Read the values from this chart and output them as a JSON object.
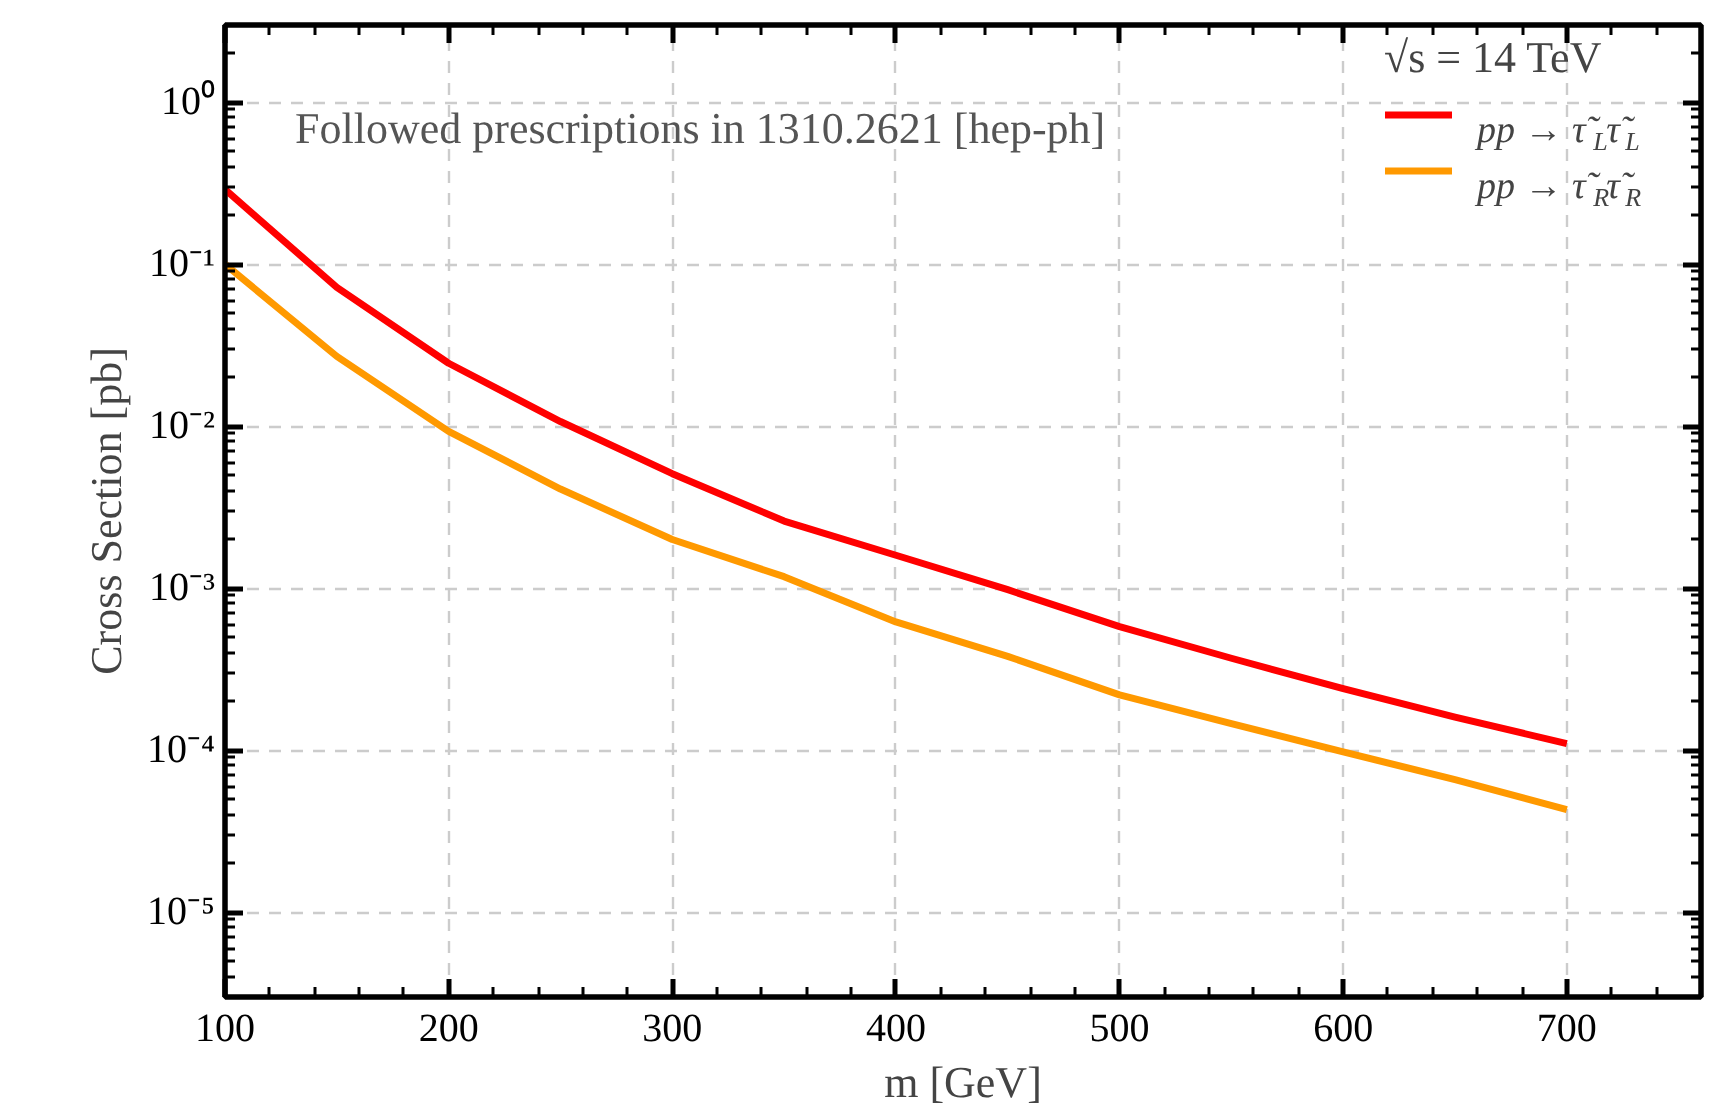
{
  "chart_data": {
    "type": "line",
    "xlabel": "m [GeV]",
    "ylabel": "Cross Section [pb]",
    "legend_title": "√s = 14 TeV",
    "annotations": [
      "Followed prescriptions in 1310.2621 [hep-ph]"
    ],
    "x": [
      100,
      150,
      200,
      250,
      300,
      350,
      400,
      450,
      500,
      550,
      600,
      650,
      700
    ],
    "series": [
      {
        "name": "pp → τ̃$_{L}$τ̃$_{L}$",
        "color": "#ff0000",
        "values": [
          0.29,
          0.072,
          0.0245,
          0.0107,
          0.0051,
          0.0026,
          0.0016,
          0.00098,
          0.00058,
          0.00037,
          0.00024,
          0.00016,
          0.00011
        ]
      },
      {
        "name": "pp → τ̃$_{R}$τ̃$_{R}$",
        "color": "#ff9900",
        "values": [
          0.1,
          0.027,
          0.0093,
          0.0041,
          0.002,
          0.00118,
          0.00062,
          0.00038,
          0.00022,
          0.000146,
          9.77e-05,
          6.6e-05,
          4.3e-05
        ]
      }
    ],
    "log": "y",
    "xlim": [
      100,
      760
    ],
    "ylim": [
      3e-06,
      3
    ],
    "xticks": [
      100,
      200,
      300,
      400,
      500,
      600,
      700
    ],
    "yticks": [
      {
        "value": 1e-05,
        "label": "10⁻⁵"
      },
      {
        "value": 0.0001,
        "label": "10⁻⁴"
      },
      {
        "value": 0.001,
        "label": "10⁻³"
      },
      {
        "value": 0.01,
        "label": "10⁻²"
      },
      {
        "value": 0.1,
        "label": "10⁻¹"
      },
      {
        "value": 1,
        "label": "10⁰"
      }
    ],
    "grid": true,
    "legend": "top right",
    "line_style": "solid",
    "marker": "none"
  }
}
